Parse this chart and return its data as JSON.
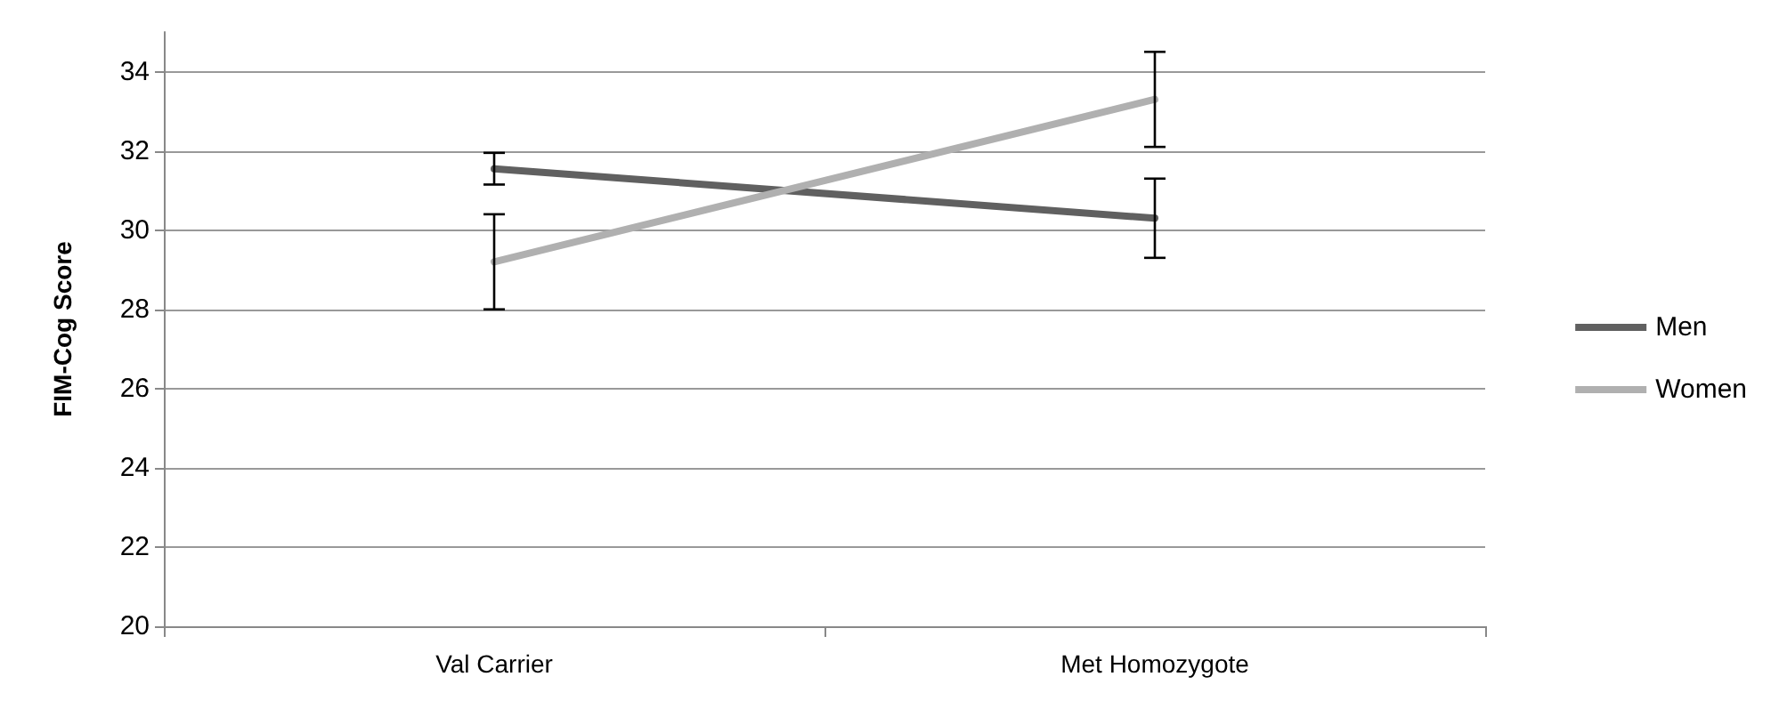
{
  "chart_data": {
    "type": "line",
    "ylabel": "FIM-Cog Score",
    "categories": [
      "Val Carrier",
      "Met Homozygote"
    ],
    "series": [
      {
        "name": "Men",
        "color": "#606060",
        "values": [
          31.55,
          30.3
        ],
        "errors": [
          0.4,
          1.0
        ]
      },
      {
        "name": "Women",
        "color": "#b0b0b0",
        "values": [
          29.2,
          33.3
        ],
        "errors": [
          1.2,
          1.2
        ]
      }
    ],
    "ylim": [
      20,
      35
    ],
    "yticks": [
      20,
      22,
      24,
      26,
      28,
      30,
      32,
      34
    ],
    "grid": "y",
    "legend": "right",
    "marker": "none",
    "line_style": "solid"
  }
}
